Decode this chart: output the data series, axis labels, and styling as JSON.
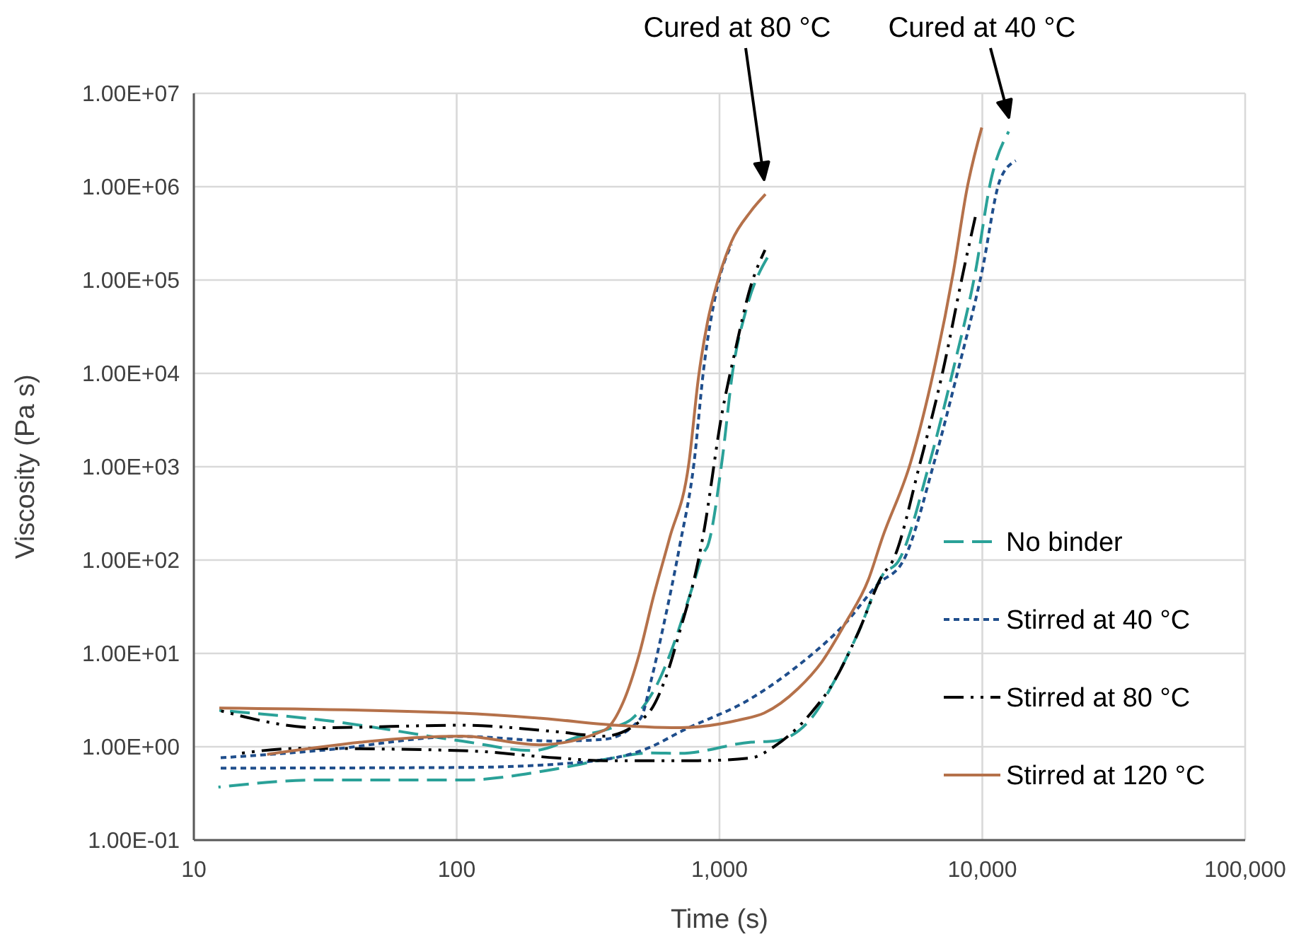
{
  "chart_data": {
    "type": "line",
    "xlabel": "Time (s)",
    "ylabel": "Viscosity (Pa s)",
    "log": "xy",
    "grid": true,
    "legend": "bottom right",
    "xlim": [
      10,
      100000
    ],
    "ylim": [
      0.1,
      10000000
    ],
    "xticks": [
      10,
      100,
      {
        "value": 1000,
        "label": "1,000"
      },
      {
        "value": 10000,
        "label": "10,000"
      },
      {
        "value": 100000,
        "label": "100,000"
      }
    ],
    "yticks": [
      {
        "value": 0.1,
        "label": "1.00E-01"
      },
      {
        "value": 1,
        "label": "1.00E+00"
      },
      {
        "value": 10,
        "label": "1.00E+01"
      },
      {
        "value": 100,
        "label": "1.00E+02"
      },
      {
        "value": 1000,
        "label": "1.00E+03"
      },
      {
        "value": 10000,
        "label": "1.00E+04"
      },
      {
        "value": 100000,
        "label": "1.00E+05"
      },
      {
        "value": 1000000,
        "label": "1.00E+06"
      },
      {
        "value": 10000000,
        "label": "1.00E+07"
      }
    ],
    "annotations": [
      "Cured at 80 °C",
      "Cured at 40 °C"
    ],
    "series": [
      {
        "name": "No binder",
        "color": "#2aa198",
        "line_style": "dashed",
        "x": [
          12.5,
          30,
          105,
          195,
          295,
          390,
          465,
          590,
          650,
          795,
          870,
          900,
          1020,
          1125,
          1260,
          1550,
          null,
          12.4,
          30,
          105,
          240,
          365,
          550,
          710,
          1320,
          1610,
          2230,
          2750,
          3380,
          4170,
          4800,
          6300,
          7750,
          9400,
          10800,
          12600
        ],
        "values": [
          2.45,
          1.95,
          1.15,
          0.91,
          1.3,
          1.6,
          2.0,
          5.2,
          10,
          55,
          120,
          140,
          1100,
          11000,
          47000,
          190000,
          null,
          0.37,
          0.44,
          0.44,
          0.58,
          0.73,
          0.86,
          0.85,
          1.12,
          1.15,
          2.0,
          5.2,
          17,
          69,
          98,
          1100,
          11000,
          120000,
          1200000,
          3900000
        ]
      },
      {
        "name": "Stirred at 40 °C",
        "color": "#1f4e8c",
        "line_style": "dotted",
        "x": [
          12.5,
          30,
          105,
          240,
          364,
          500,
          550,
          605,
          705,
          800,
          870,
          980,
          1110,
          null,
          12.5,
          105,
          295,
          550,
          710,
          1320,
          1990,
          3010,
          4000,
          5000,
          6550,
          8100,
          9950,
          11700,
          13400
        ],
        "values": [
          0.76,
          0.91,
          1.29,
          1.15,
          1.2,
          2.0,
          5.2,
          17,
          140,
          1100,
          11000,
          83000,
          240000,
          null,
          0.59,
          0.6,
          0.68,
          1.0,
          1.45,
          3.3,
          7.4,
          21,
          55,
          98,
          1100,
          11000,
          120000,
          1200000,
          1900000
        ]
      },
      {
        "name": "Stirred at 80 °C",
        "color": "#000000",
        "line_style": "dashdot",
        "x": [
          12.5,
          30,
          105,
          240,
          364,
          530,
          620,
          705,
          830,
          870,
          1020,
          1150,
          1310,
          1490,
          null,
          15,
          25,
          105,
          240,
          364,
          830,
          1320,
          1610,
          2230,
          2750,
          3380,
          4170,
          4560,
          5800,
          7100,
          8450,
          9500
        ],
        "values": [
          2.45,
          1.6,
          1.7,
          1.45,
          1.3,
          2.2,
          5.2,
          17,
          98,
          195,
          3600,
          18000,
          83000,
          210000,
          null,
          0.85,
          0.96,
          0.91,
          0.76,
          0.71,
          0.71,
          0.76,
          1.0,
          2.3,
          5.2,
          17,
          69,
          98,
          1100,
          11000,
          120000,
          540000
        ]
      },
      {
        "name": "Stirred at 120 °C",
        "color": "#b5714a",
        "line_style": "solid",
        "x": [
          19,
          105,
          205,
          364,
          430,
          496,
          560,
          645,
          765,
          832,
          903,
          980,
          1112,
          1312,
          1496,
          null,
          12.5,
          101,
          240,
          364,
          710,
          1200,
          1480,
          1990,
          2450,
          3010,
          3680,
          4170,
          5330,
          6550,
          7750,
          8750,
          9950
        ],
        "values": [
          0.83,
          1.3,
          1.05,
          1.5,
          3,
          10,
          40,
          170,
          1100,
          9100,
          37000,
          93000,
          260000,
          540000,
          830000,
          null,
          2.6,
          2.3,
          1.95,
          1.74,
          1.6,
          1.95,
          2.3,
          4.2,
          8.1,
          21,
          61,
          175,
          1100,
          11000,
          120000,
          960000,
          4300000
        ]
      }
    ]
  }
}
